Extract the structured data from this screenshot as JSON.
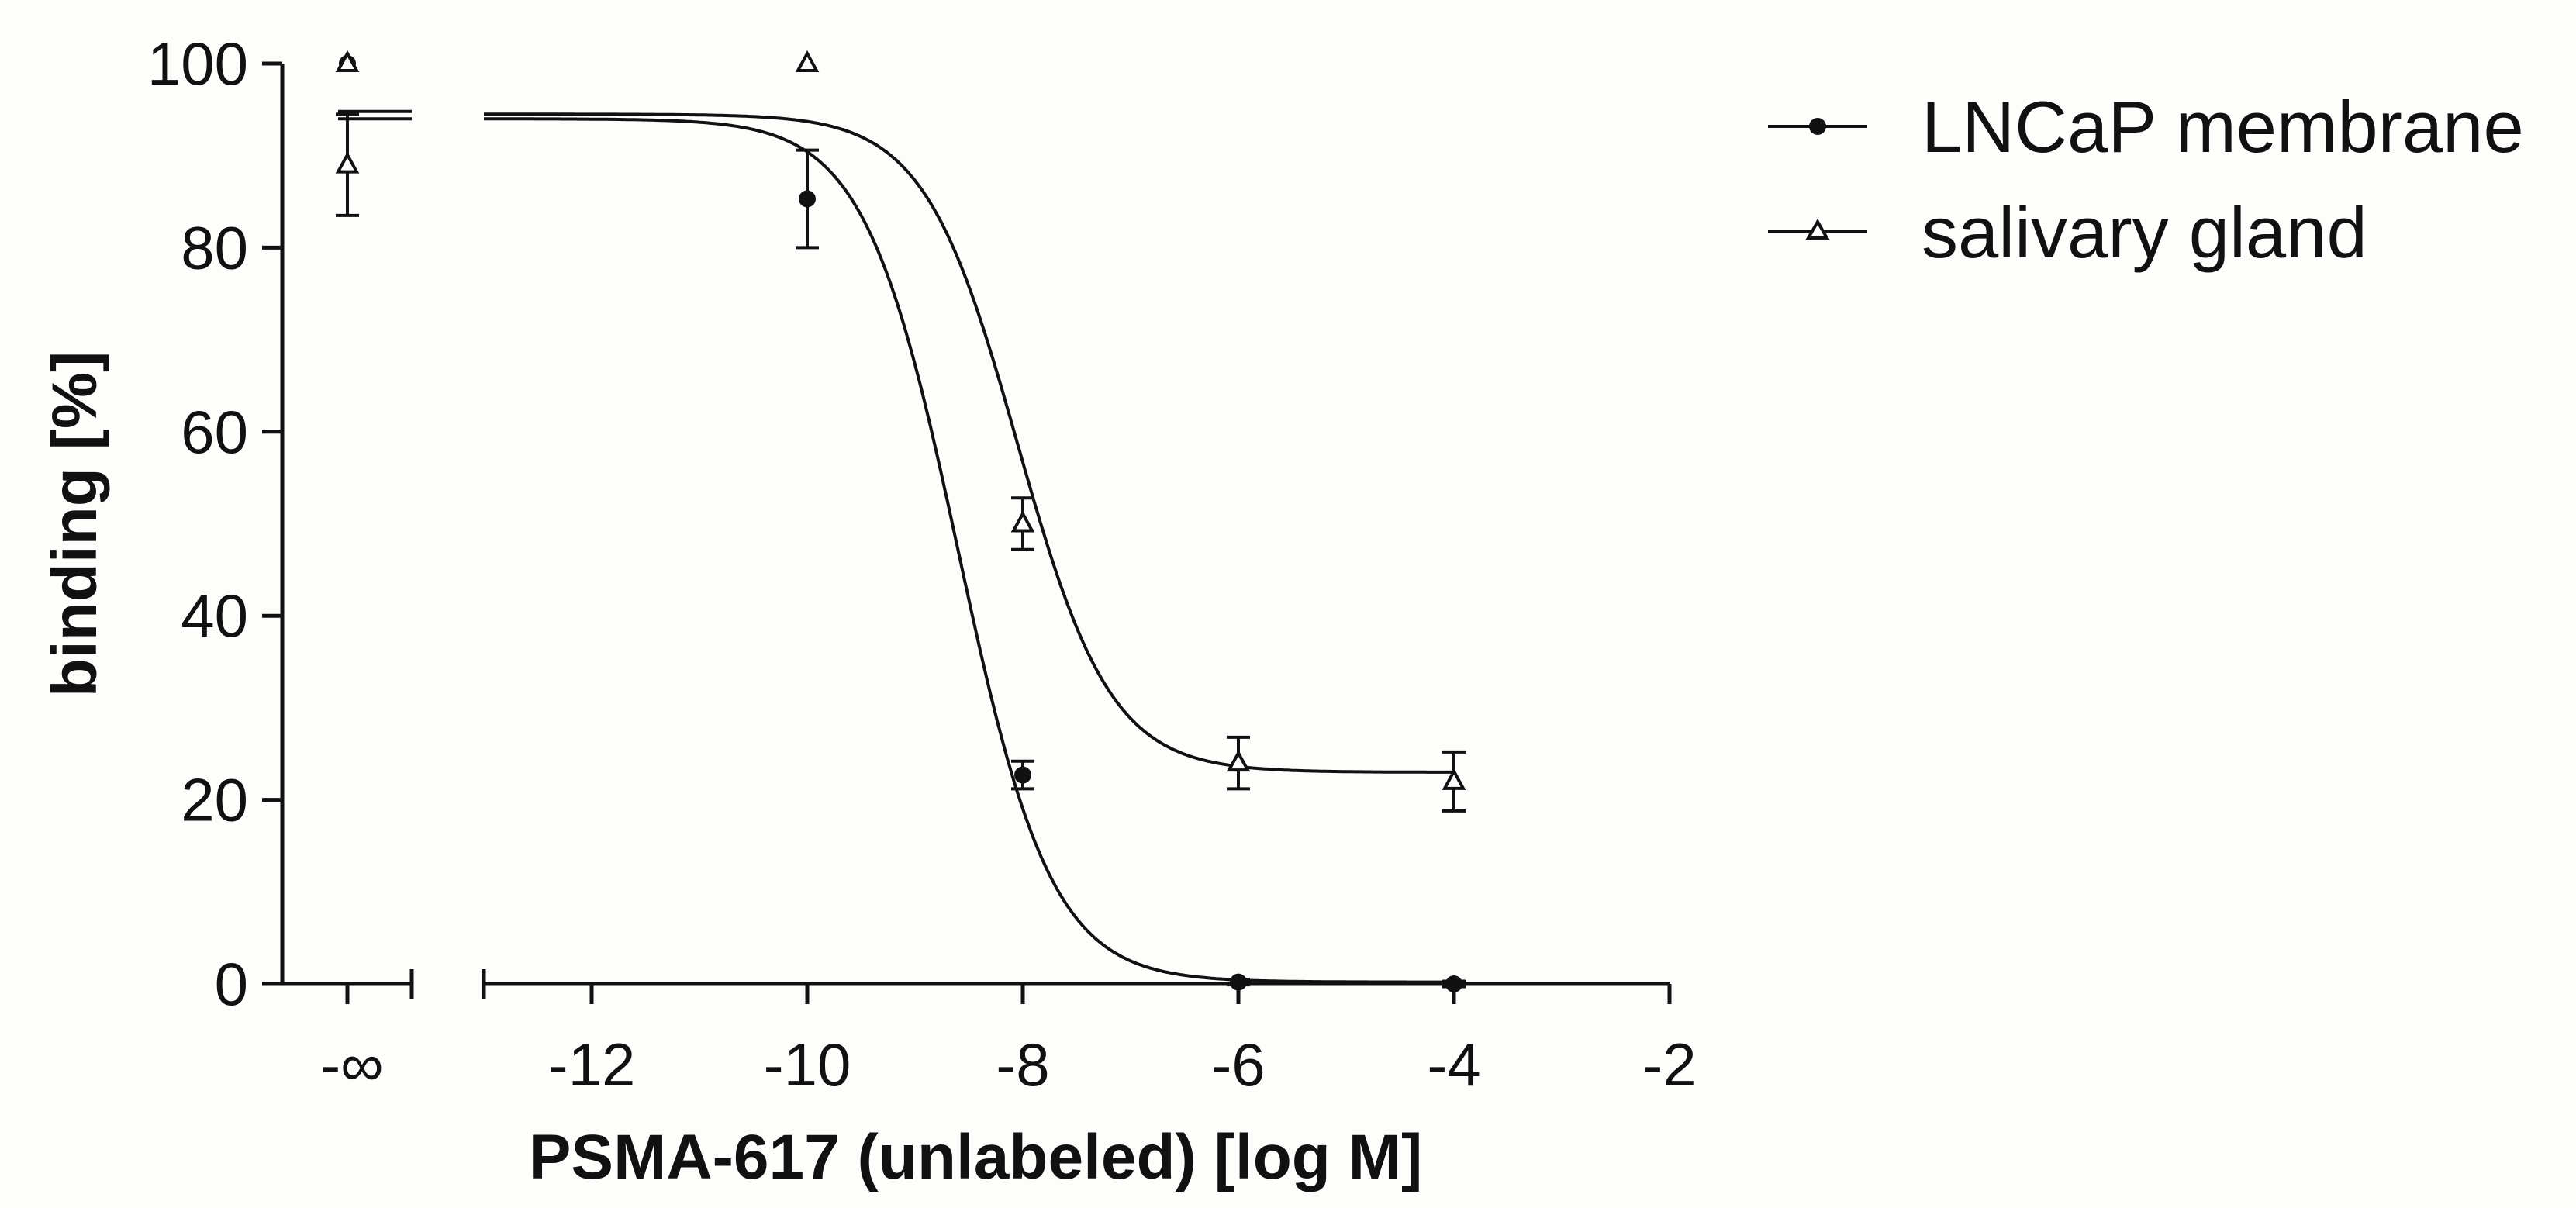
{
  "chart_data": {
    "type": "scatter",
    "xlabel": "PSMA-617 (unlabeled) [log M]",
    "ylabel": "binding [%]",
    "xlim": [
      -13,
      -2
    ],
    "ylim": [
      0,
      100
    ],
    "x_ticks": [
      -12,
      -10,
      -8,
      -6,
      -4,
      -2
    ],
    "x_tick_labels": [
      "-12",
      "-10",
      "-8",
      "-6",
      "-4",
      "-2"
    ],
    "y_ticks": [
      0,
      20,
      40,
      60,
      80,
      100
    ],
    "y_tick_labels": [
      "0",
      "20",
      "40",
      "60",
      "80",
      "100"
    ],
    "x_break_label": "-∞",
    "legend_position": "top-right",
    "series": [
      {
        "name": "LNCaP membrane",
        "marker": "filled-circle",
        "neg_inf_point": {
          "y": 100
        },
        "points": [
          {
            "x": -10,
            "y": 85.3,
            "err": 5.3
          },
          {
            "x": -8,
            "y": 22.7,
            "err": 1.5
          },
          {
            "x": -6,
            "y": 0.2,
            "err": 0.3
          },
          {
            "x": -4,
            "y": 0.0,
            "err": 0.3
          }
        ],
        "fit": {
          "top": 94,
          "bottom": 0.2,
          "logIC50": -8.6,
          "hill": 1.0
        },
        "neg_inf_fit_y": 94
      },
      {
        "name": "salivary gland",
        "marker": "open-triangle",
        "neg_inf_point": {
          "y": 100
        },
        "neg_inf_mean": {
          "y": 89,
          "err": 5.5
        },
        "points": [
          {
            "x": -10,
            "y": 100,
            "err": 0
          },
          {
            "x": -8,
            "y": 50.0,
            "err": 2.8
          },
          {
            "x": -6,
            "y": 24.0,
            "err": 2.8
          },
          {
            "x": -4,
            "y": 22.0,
            "err": 3.2
          }
        ],
        "fit": {
          "top": 94.5,
          "bottom": 23.0,
          "logIC50": -8.05,
          "hill": 1.0
        },
        "neg_inf_fit_y": 94.8
      }
    ]
  }
}
